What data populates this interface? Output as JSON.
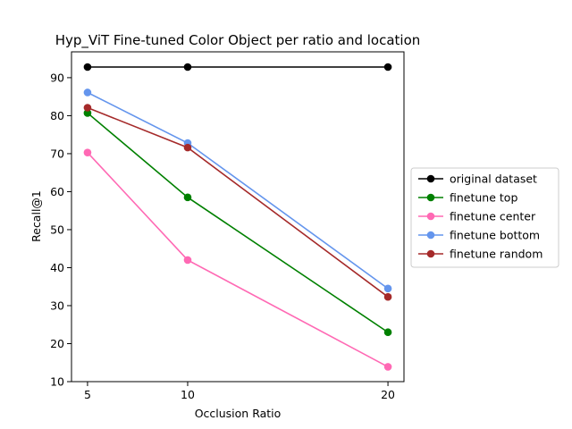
{
  "chart_data": {
    "type": "line",
    "title": "Hyp_ViT Fine-tuned Color Object per ratio and location",
    "xlabel": "Occlusion Ratio",
    "ylabel": "Recall@1",
    "x": [
      5,
      10,
      20
    ],
    "xlim": [
      4.2,
      20.8
    ],
    "ylim": [
      10,
      96.8
    ],
    "xticks": [
      5,
      10,
      20
    ],
    "yticks": [
      10,
      20,
      30,
      40,
      50,
      60,
      70,
      80,
      90
    ],
    "grid": false,
    "legend_position": "outside-right",
    "series": [
      {
        "name": "original dataset",
        "color": "#000000",
        "values": [
          92.8,
          92.8,
          92.8
        ]
      },
      {
        "name": "finetune top",
        "color": "#008000",
        "values": [
          80.7,
          58.5,
          23.0
        ]
      },
      {
        "name": "finetune center",
        "color": "#ff69b4",
        "values": [
          70.3,
          42.0,
          13.9
        ]
      },
      {
        "name": "finetune bottom",
        "color": "#6495ed",
        "values": [
          86.1,
          72.8,
          34.5
        ]
      },
      {
        "name": "finetune random",
        "color": "#a52a2a",
        "values": [
          82.1,
          71.6,
          32.3
        ]
      }
    ]
  }
}
